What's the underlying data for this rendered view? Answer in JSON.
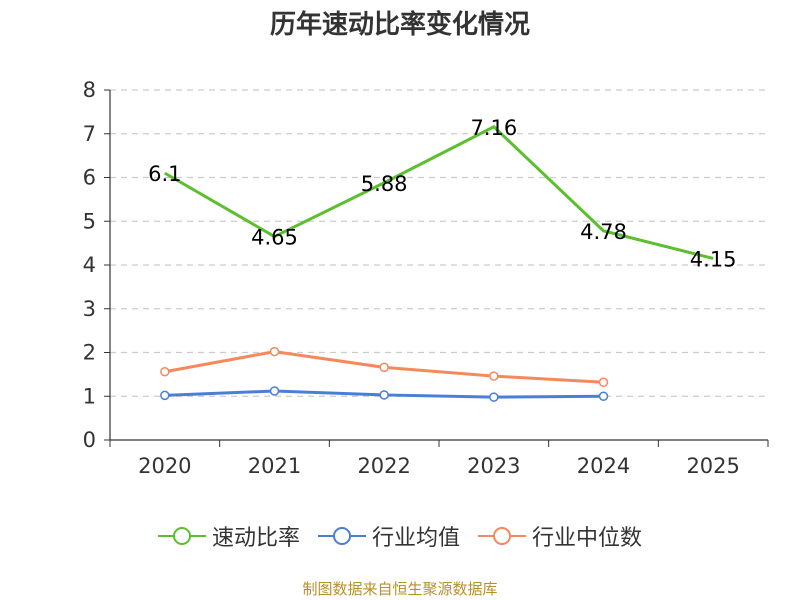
{
  "chart_data": {
    "type": "line",
    "title": "历年速动比率变化情况",
    "categories": [
      "2020",
      "2021",
      "2022",
      "2023",
      "2024",
      "2025"
    ],
    "ylim": [
      0,
      8
    ],
    "yticks": [
      0,
      1,
      2,
      3,
      4,
      5,
      6,
      7,
      8
    ],
    "grid": true,
    "series": [
      {
        "name": "速动比率",
        "color": "#5bbf2e",
        "values": [
          6.1,
          4.65,
          5.88,
          7.16,
          4.78,
          4.15
        ],
        "labels": [
          "6.1",
          "4.65",
          "5.88",
          "7.16",
          "4.78",
          "4.15"
        ],
        "show_labels": true,
        "show_markers": false
      },
      {
        "name": "行业均值",
        "color": "#4a7fd8",
        "values": [
          1.02,
          1.12,
          1.03,
          0.98,
          1.0,
          null
        ],
        "show_labels": false,
        "show_markers": true
      },
      {
        "name": "行业中位数",
        "color": "#f5895b",
        "values": [
          1.56,
          2.02,
          1.66,
          1.46,
          1.32,
          null
        ],
        "show_labels": false,
        "show_markers": true
      }
    ],
    "legend_position": "bottom",
    "source": "制图数据来自恒生聚源数据库"
  }
}
